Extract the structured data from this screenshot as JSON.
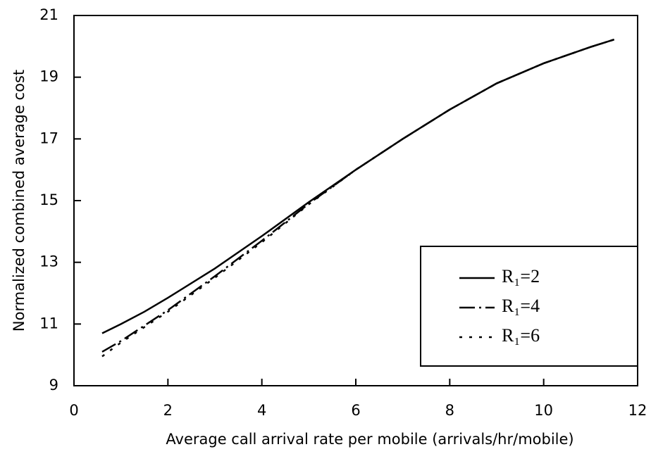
{
  "chart_data": {
    "type": "line",
    "xlabel": "Average call arrival rate per mobile (arrivals/hr/mobile)",
    "ylabel": "Normalized combined average cost",
    "x": [
      0.6,
      1,
      1.5,
      2,
      3,
      4,
      5,
      6,
      7,
      8,
      9,
      10,
      11,
      11.5
    ],
    "series": [
      {
        "name": "R₁=2",
        "color": "#000000",
        "dash": "solid",
        "values": [
          10.7,
          11.0,
          11.4,
          11.85,
          12.8,
          13.85,
          14.95,
          16.0,
          17.0,
          17.95,
          18.8,
          19.45,
          19.98,
          20.22
        ]
      },
      {
        "name": "R₁=4",
        "color": "#000000",
        "dash": "dashdot",
        "values": [
          10.1,
          10.45,
          10.95,
          11.45,
          12.55,
          13.7,
          14.9,
          16.0,
          17.0,
          17.95,
          18.8,
          19.45,
          19.98,
          20.22
        ]
      },
      {
        "name": "R₁=6",
        "color": "#000000",
        "dash": "dotted",
        "values": [
          9.95,
          10.4,
          10.9,
          11.4,
          12.5,
          13.65,
          14.88,
          16.0,
          17.0,
          17.95,
          18.8,
          19.45,
          19.98,
          20.22
        ]
      }
    ],
    "xlim": [
      0,
      12
    ],
    "xticks": [
      0,
      2,
      4,
      6,
      8,
      10,
      12
    ],
    "ylim": [
      9,
      21
    ],
    "yticks": [
      9,
      11,
      13,
      15,
      17,
      19,
      21
    ],
    "grid": false,
    "legend": "lower right"
  }
}
